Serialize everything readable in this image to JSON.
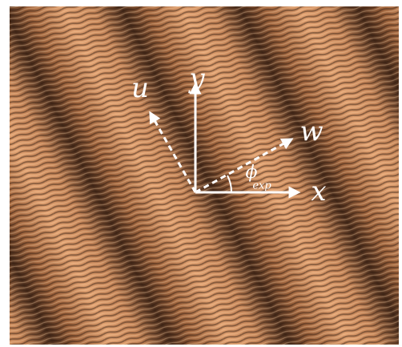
{
  "labels": {
    "u": "u",
    "y": "y",
    "w": "w",
    "x": "x",
    "phi": "ϕ",
    "phi_subscript": "exp"
  }
}
